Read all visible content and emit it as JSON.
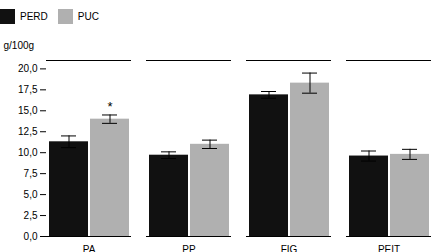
{
  "chart_data": {
    "type": "bar",
    "categories": [
      "PA",
      "PP",
      "FIG",
      "PEIT"
    ],
    "series": [
      {
        "name": "PERD",
        "color": "#111111",
        "values": [
          11.3,
          9.7,
          16.9,
          9.6
        ],
        "errors": [
          0.7,
          0.4,
          0.4,
          0.6
        ]
      },
      {
        "name": "PUC",
        "color": "#b0b0b0",
        "values": [
          14.0,
          11.0,
          18.3,
          9.8
        ],
        "errors": [
          0.5,
          0.5,
          1.2,
          0.6
        ]
      }
    ],
    "ylabel": "g/100g",
    "ylim": [
      0,
      21.0
    ],
    "yticks": [
      {
        "value": 0.0,
        "label": "0,0"
      },
      {
        "value": 2.5,
        "label": "2,5"
      },
      {
        "value": 5.0,
        "label": "5,0"
      },
      {
        "value": 7.5,
        "label": "7,5"
      },
      {
        "value": 10.0,
        "label": "10,0"
      },
      {
        "value": 12.5,
        "label": "12,5"
      },
      {
        "value": 15.0,
        "label": "15,0"
      },
      {
        "value": 17.5,
        "label": "17,5"
      },
      {
        "value": 20.0,
        "label": "20,0"
      }
    ],
    "annotations": [
      {
        "text": "*",
        "category": "PA",
        "series": "PUC"
      }
    ],
    "legend": "upper left"
  }
}
